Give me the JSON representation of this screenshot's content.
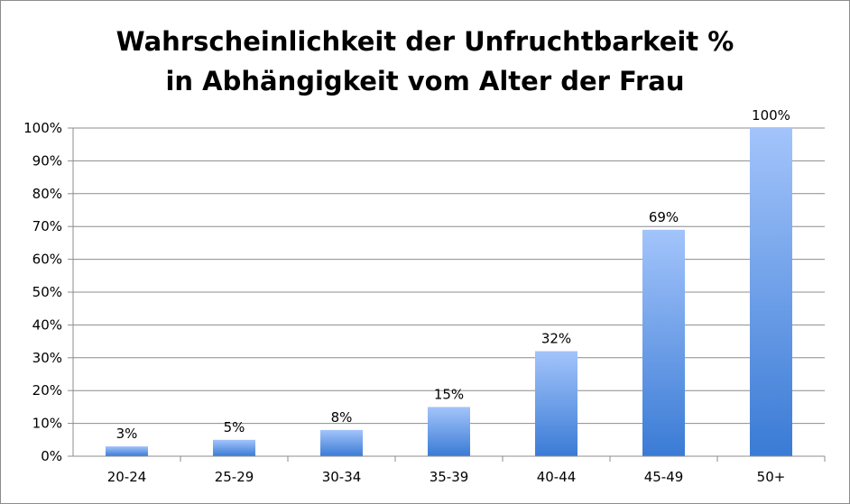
{
  "chart_data": {
    "type": "bar",
    "title_line1": "Wahrscheinlichkeit der Unfruchtbarkeit %",
    "title_line2": "in Abhängigkeit vom Alter der Frau",
    "categories": [
      "20-24",
      "25-29",
      "30-34",
      "35-39",
      "40-44",
      "45-49",
      "50+"
    ],
    "values": [
      3,
      5,
      8,
      15,
      32,
      69,
      100
    ],
    "data_labels": [
      "3%",
      "5%",
      "8%",
      "15%",
      "32%",
      "69%",
      "100%"
    ],
    "y_ticks": [
      "0%",
      "10%",
      "20%",
      "30%",
      "40%",
      "50%",
      "60%",
      "70%",
      "80%",
      "90%",
      "100%"
    ],
    "ylim": [
      0,
      100
    ],
    "xlabel": "",
    "ylabel": "",
    "grid": true,
    "legend": "none",
    "colors": {
      "bar_top": "#a3c4fb",
      "bar_bottom": "#3a7bd5",
      "grid": "#8c8c8c"
    }
  }
}
